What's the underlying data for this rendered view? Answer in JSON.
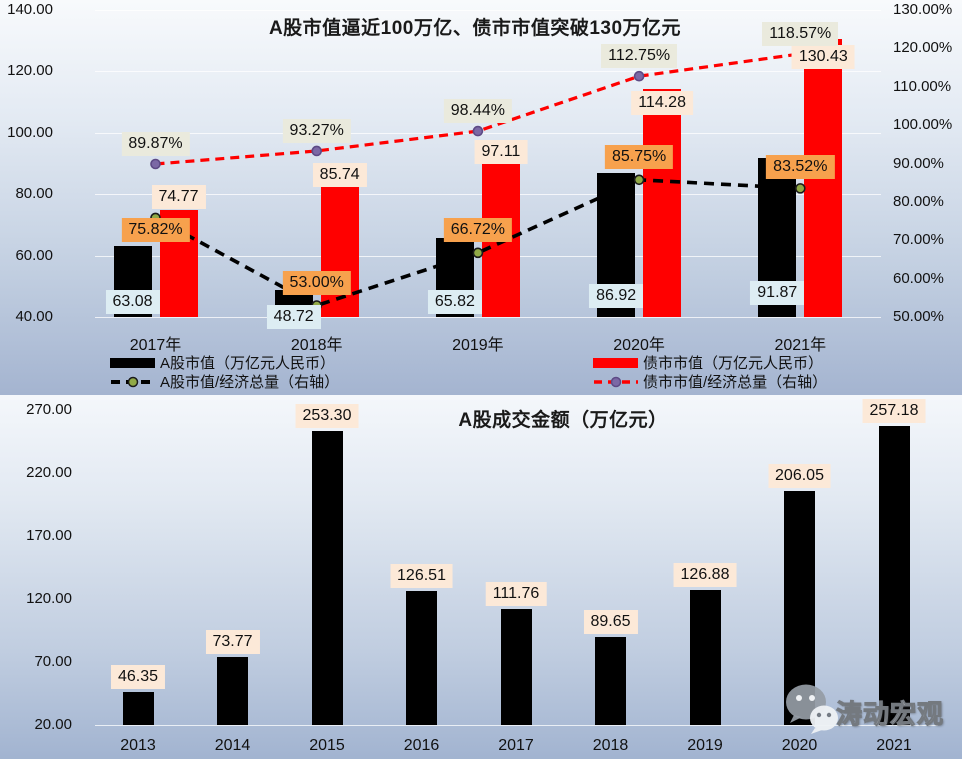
{
  "watermark": {
    "text": "涛动宏观",
    "icon": "wechat-icon"
  },
  "chart_data": [
    {
      "type": "combo-bar-line-dual-axis",
      "title": "A股市值逼近100万亿、债市市值突破130万亿元",
      "categories": [
        "2017年",
        "2018年",
        "2019年",
        "2020年",
        "2021年"
      ],
      "series": [
        {
          "name": "A股市值（万亿元人民币）",
          "type": "bar",
          "axis": "left",
          "color": "#000000",
          "label_bg": "#ddedf3",
          "values": [
            63.08,
            48.72,
            65.82,
            86.92,
            91.87
          ],
          "label_dy": [
            -15,
            0,
            -15,
            -21,
            -24
          ]
        },
        {
          "name": "债市市值（万亿元人民币）",
          "type": "bar",
          "axis": "left",
          "color": "#ff0000",
          "label_bg": "#fce9d8",
          "values": [
            74.77,
            85.74,
            97.11,
            114.28,
            130.43
          ],
          "label_dy": [
            -13,
            -2,
            10,
            14,
            18
          ]
        },
        {
          "name": "A股市值/经济总量（右轴）",
          "type": "line",
          "axis": "right",
          "color": "#000000",
          "marker_color": "#90a946",
          "marker_stroke": "#1a1a1a",
          "label_bg": "#f7a14d",
          "label_format": "percent",
          "values": [
            75.82,
            53.0,
            66.72,
            85.75,
            83.52
          ],
          "label_dy": [
            12,
            -22,
            -23,
            -23,
            -21
          ]
        },
        {
          "name": "债市市值/经济总量（右轴）",
          "type": "line",
          "axis": "right",
          "color": "#ff0000",
          "marker_color": "#7b68a5",
          "marker_stroke": "#5d4a85",
          "label_bg": "#eaeadd",
          "label_format": "percent",
          "values": [
            89.87,
            93.27,
            98.44,
            112.75,
            118.57
          ],
          "label_dy": [
            -20,
            -20,
            -20,
            -20,
            -20
          ]
        }
      ],
      "left_axis": {
        "min": 40,
        "max": 140,
        "ticks": [
          "140.00",
          "120.00",
          "100.00",
          "80.00",
          "60.00",
          "40.00"
        ],
        "tick_values": [
          140,
          120,
          100,
          80,
          60,
          40
        ]
      },
      "right_axis": {
        "min": 50,
        "max": 130,
        "ticks": [
          "130.00%",
          "120.00%",
          "110.00%",
          "100.00%",
          "90.00%",
          "80.00%",
          "70.00%",
          "60.00%",
          "50.00%"
        ],
        "tick_values": [
          130,
          120,
          110,
          100,
          90,
          80,
          70,
          60,
          50
        ]
      },
      "grid": "horizontal-left-axis",
      "legend_position": "bottom"
    },
    {
      "type": "bar",
      "title": "A股成交金额（万亿元）",
      "categories": [
        "2013",
        "2014",
        "2015",
        "2016",
        "2017",
        "2018",
        "2019",
        "2020",
        "2021"
      ],
      "values": [
        46.35,
        73.77,
        253.3,
        126.51,
        111.76,
        89.65,
        126.88,
        206.05,
        257.18
      ],
      "bar_color": "#000000",
      "label_bg": "#fce9d8",
      "yaxis": {
        "min": 20,
        "max": 270,
        "ticks": [
          "270.00",
          "220.00",
          "170.00",
          "120.00",
          "70.00",
          "20.00"
        ],
        "tick_values": [
          270,
          220,
          170,
          120,
          70,
          20
        ]
      },
      "grid": "baseline-only",
      "legend_position": "none"
    }
  ]
}
